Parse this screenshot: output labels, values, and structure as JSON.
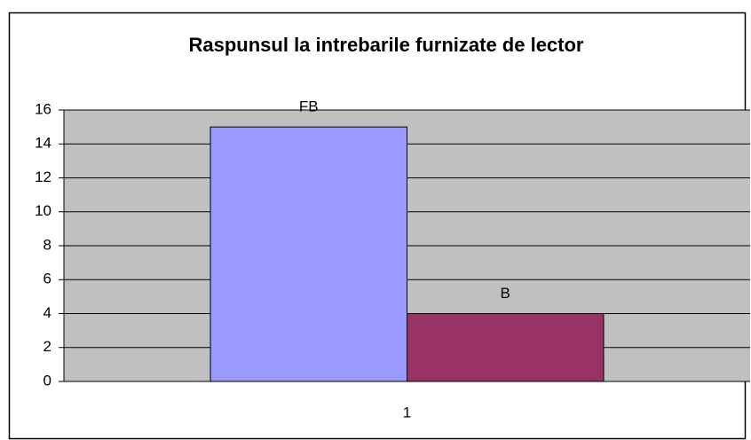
{
  "chart_data": {
    "type": "bar",
    "title": "Raspunsul la intrebarile furnizate de lector",
    "categories": [
      "1"
    ],
    "series": [
      {
        "name": "FB",
        "color": "#9999ff",
        "values": [
          15
        ]
      },
      {
        "name": "B",
        "color": "#993366",
        "values": [
          4
        ]
      }
    ],
    "ylim": [
      0,
      16
    ],
    "yticks": [
      0,
      2,
      4,
      6,
      8,
      10,
      12,
      14,
      16
    ],
    "grid": true,
    "plot_background": "#c0c0c0"
  }
}
